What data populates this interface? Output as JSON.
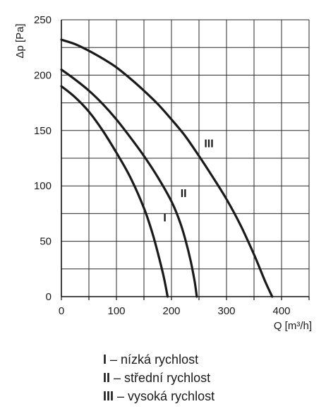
{
  "chart_data": {
    "type": "line",
    "xlabel": "Q [m³/h]",
    "ylabel": "Δp [Pa]",
    "xlim": [
      0,
      450
    ],
    "ylim": [
      0,
      250
    ],
    "x_ticks": [
      "0",
      "100",
      "200",
      "300",
      "400"
    ],
    "y_ticks": [
      "0",
      "50",
      "100",
      "150",
      "200",
      "250"
    ],
    "x_grid_step": 50,
    "y_grid_step": 25,
    "grid": true,
    "series": [
      {
        "name": "I",
        "points": [
          [
            0,
            190
          ],
          [
            25,
            180
          ],
          [
            50,
            167
          ],
          [
            75,
            150
          ],
          [
            100,
            130
          ],
          [
            125,
            108
          ],
          [
            150,
            80
          ],
          [
            165,
            58
          ],
          [
            175,
            40
          ],
          [
            185,
            20
          ],
          [
            190,
            8
          ],
          [
            193,
            0
          ]
        ]
      },
      {
        "name": "II",
        "points": [
          [
            0,
            205
          ],
          [
            25,
            196
          ],
          [
            50,
            186
          ],
          [
            75,
            174
          ],
          [
            100,
            160
          ],
          [
            125,
            144
          ],
          [
            150,
            127
          ],
          [
            175,
            108
          ],
          [
            200,
            86
          ],
          [
            215,
            68
          ],
          [
            225,
            52
          ],
          [
            235,
            32
          ],
          [
            242,
            14
          ],
          [
            246,
            0
          ]
        ]
      },
      {
        "name": "III",
        "points": [
          [
            0,
            232
          ],
          [
            25,
            228
          ],
          [
            50,
            222
          ],
          [
            75,
            215
          ],
          [
            100,
            207
          ],
          [
            125,
            197
          ],
          [
            150,
            186
          ],
          [
            175,
            174
          ],
          [
            200,
            160
          ],
          [
            225,
            145
          ],
          [
            250,
            127
          ],
          [
            275,
            108
          ],
          [
            300,
            88
          ],
          [
            325,
            65
          ],
          [
            350,
            38
          ],
          [
            370,
            14
          ],
          [
            383,
            0
          ]
        ]
      }
    ],
    "curve_labels": [
      {
        "series": "I",
        "text": "I",
        "x": 188,
        "y": 68
      },
      {
        "series": "II",
        "text": "II",
        "x": 222,
        "y": 90
      },
      {
        "series": "III",
        "text": "III",
        "x": 268,
        "y": 135
      }
    ],
    "line_color": "#1a1a1a",
    "grid_color": "#2a2a2a"
  },
  "legend": [
    {
      "key": "I",
      "text": "– nízká rychlost"
    },
    {
      "key": "II",
      "text": "– střední rychlost"
    },
    {
      "key": "III",
      "text": "– vysoká rychlost"
    }
  ]
}
